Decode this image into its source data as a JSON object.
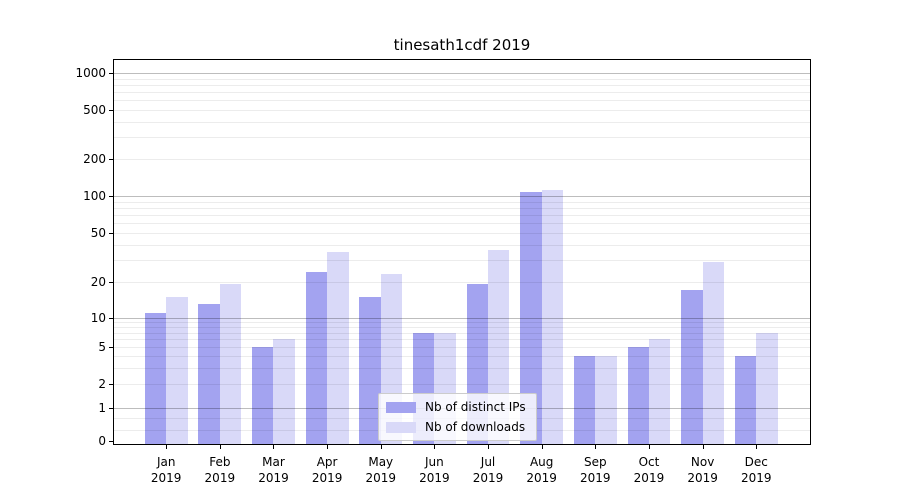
{
  "chart_data": {
    "type": "bar",
    "title": "tinesath1cdf 2019",
    "categories": [
      "Jan",
      "Feb",
      "Mar",
      "Apr",
      "May",
      "Jun",
      "Jul",
      "Aug",
      "Sep",
      "Oct",
      "Nov",
      "Dec"
    ],
    "category_year": "2019",
    "series": [
      {
        "name": "Nb of distinct IPs",
        "color": "#a3a3f0",
        "values": [
          11,
          13,
          5,
          24,
          15,
          7,
          19,
          108,
          4,
          5,
          17,
          4
        ]
      },
      {
        "name": "Nb of downloads",
        "color": "#d9d9f8",
        "values": [
          15,
          19,
          6,
          35,
          23,
          7,
          36,
          112,
          4,
          6,
          29,
          7
        ]
      }
    ],
    "yticks": [
      1000,
      500,
      200,
      100,
      50,
      20,
      10,
      5,
      2,
      1,
      0
    ],
    "yscale": "symlog",
    "ylim": [
      0,
      1500
    ],
    "xlabel": "",
    "ylabel": "",
    "grid": true,
    "legend_position": "lower-center"
  }
}
